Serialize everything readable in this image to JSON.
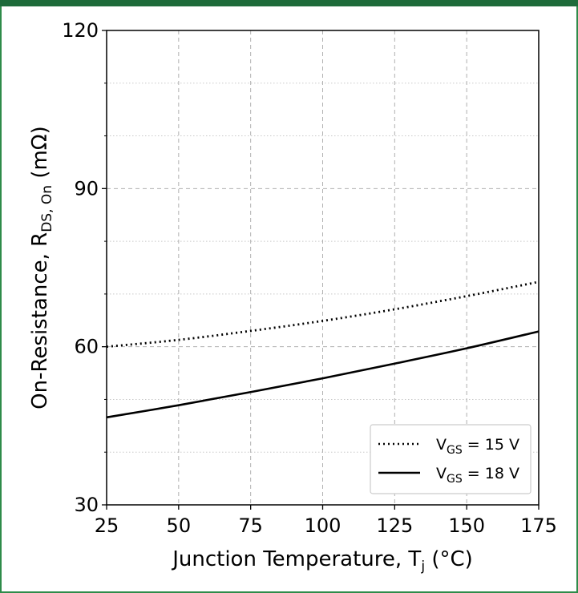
{
  "chart_data": {
    "type": "line",
    "xlabel": "Junction Temperature, T",
    "xlabel_sub": "j",
    "xlabel_tail": " (°C)",
    "ylabel": "On-Resistance, R",
    "ylabel_sub": "DS, On",
    "ylabel_tail": " (mΩ)",
    "xlim": [
      25,
      175
    ],
    "ylim": [
      30,
      120
    ],
    "xticks": [
      25,
      50,
      75,
      100,
      125,
      150,
      175
    ],
    "yticks": [
      30,
      60,
      90,
      120
    ],
    "grid": true,
    "legend_position": "bottom-right",
    "series": [
      {
        "name": "V",
        "name_sub": "GS",
        "name_tail": " = 15 V",
        "style": "dotted",
        "color": "#000000",
        "x": [
          25,
          50,
          75,
          100,
          125,
          150,
          175
        ],
        "y": [
          60.0,
          61.3,
          63.0,
          64.9,
          67.1,
          69.6,
          72.3
        ]
      },
      {
        "name": "V",
        "name_sub": "GS",
        "name_tail": " = 18 V",
        "style": "solid",
        "color": "#000000",
        "x": [
          25,
          50,
          75,
          100,
          125,
          150,
          175
        ],
        "y": [
          46.6,
          48.9,
          51.4,
          54.0,
          56.8,
          59.7,
          62.9
        ]
      }
    ]
  }
}
